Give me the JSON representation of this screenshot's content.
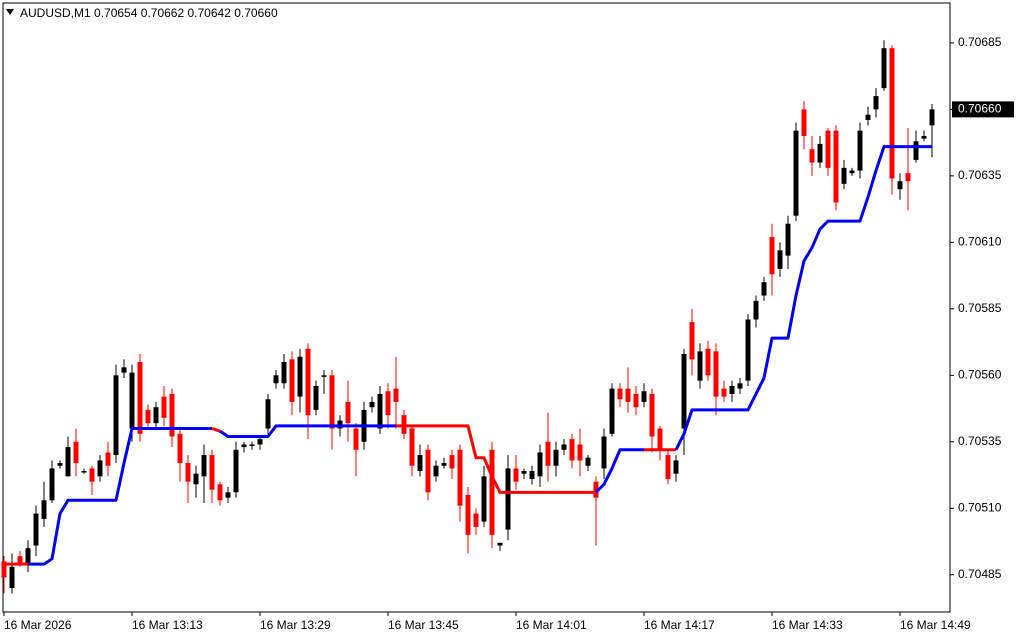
{
  "chart_data": {
    "type": "candlestick",
    "title": "AUDUSD,M1",
    "info_labels": [
      "0.70654",
      "0.70662",
      "0.70642",
      "0.70660"
    ],
    "categories": [
      "16 Mar 2026",
      null,
      null,
      null,
      null,
      null,
      null,
      null,
      null,
      null,
      null,
      null,
      null,
      null,
      null,
      null,
      "16 Mar 13:13",
      null,
      null,
      null,
      null,
      null,
      null,
      null,
      null,
      null,
      null,
      null,
      null,
      null,
      null,
      null,
      "16 Mar 13:29",
      null,
      null,
      null,
      null,
      null,
      null,
      null,
      null,
      null,
      null,
      null,
      null,
      null,
      null,
      null,
      "16 Mar 13:45",
      null,
      null,
      null,
      null,
      null,
      null,
      null,
      null,
      null,
      null,
      null,
      null,
      null,
      null,
      null,
      "16 Mar 14:01",
      null,
      null,
      null,
      null,
      null,
      null,
      null,
      null,
      null,
      null,
      null,
      null,
      null,
      null,
      null,
      "16 Mar 14:17",
      null,
      null,
      null,
      null,
      null,
      null,
      null,
      null,
      null,
      null,
      null,
      null,
      null,
      null,
      null,
      "16 Mar 14:33",
      null,
      null,
      null,
      null,
      null,
      null,
      null,
      null,
      null,
      null,
      null,
      null,
      null,
      null,
      null,
      "16 Mar 14:49",
      null,
      null,
      null,
      null
    ],
    "open": [
      0.7049,
      0.7048,
      0.70492,
      0.70489,
      0.70496,
      0.70506,
      0.70513,
      0.70526,
      0.70522,
      0.70535,
      0.70524,
      0.70525,
      0.70522,
      0.70531,
      0.7053,
      0.70561,
      0.7054,
      0.70565,
      0.70547,
      0.70542,
      0.70552,
      0.70553,
      0.70538,
      0.70527,
      0.70519,
      0.70522,
      0.7053,
      0.70519,
      0.70514,
      0.70516,
      0.70533,
      0.70534,
      0.70534,
      0.7054,
      0.70557,
      0.70557,
      0.70566,
      0.70552,
      0.7057,
      0.70547,
      0.7056,
      0.7056,
      0.7054,
      0.7055,
      0.7054,
      0.70535,
      0.70548,
      0.7054,
      0.70554,
      0.70555,
      0.70545,
      0.7054,
      0.70524,
      0.70532,
      0.70522,
      0.70526,
      0.7053,
      0.70532,
      0.70515,
      0.70508,
      0.70505,
      0.70532,
      0.70496,
      0.70502,
      0.70525,
      0.70523,
      0.70521,
      0.70522,
      0.70535,
      0.70526,
      0.70532,
      0.70536,
      0.70534,
      0.70526,
      0.7052,
      0.70525,
      0.70538,
      0.70555,
      0.70555,
      0.70553,
      0.7055,
      0.70553,
      0.7054,
      0.7053,
      0.70523,
      0.7054,
      0.7058,
      0.70558,
      0.7057,
      0.70569,
      0.70555,
      0.70553,
      0.70555,
      0.70558,
      0.70581,
      0.7059,
      0.70612,
      0.706,
      0.70605,
      0.7062,
      0.7066,
      0.70645,
      0.7064,
      0.70652,
      0.70652,
      0.70632,
      0.70636,
      0.70637,
      0.70656,
      0.7066,
      0.70668,
      0.70683,
      0.7063,
      0.70636,
      0.70641,
      0.70649,
      0.70654
    ],
    "high": [
      0.70492,
      0.70493,
      0.70494,
      0.70498,
      0.70511,
      0.7052,
      0.70528,
      0.70528,
      0.70537,
      0.7054,
      0.70525,
      0.70526,
      0.7053,
      0.70535,
      0.70564,
      0.70566,
      0.70564,
      0.70568,
      0.70549,
      0.7055,
      0.70556,
      0.70555,
      0.7054,
      0.7053,
      0.70526,
      0.70534,
      0.70532,
      0.7052,
      0.70518,
      0.70535,
      0.70535,
      0.70535,
      0.70537,
      0.70553,
      0.70562,
      0.70568,
      0.70569,
      0.7057,
      0.70572,
      0.70558,
      0.70562,
      0.70562,
      0.70545,
      0.70558,
      0.70542,
      0.7055,
      0.70552,
      0.70556,
      0.70557,
      0.70567,
      0.70547,
      0.70541,
      0.70534,
      0.70534,
      0.70528,
      0.70529,
      0.70532,
      0.70534,
      0.70518,
      0.7051,
      0.70526,
      0.70535,
      0.70497,
      0.7053,
      0.7053,
      0.70525,
      0.70526,
      0.70534,
      0.70546,
      0.70535,
      0.70536,
      0.70538,
      0.7054,
      0.7053,
      0.70522,
      0.7054,
      0.70557,
      0.70557,
      0.70563,
      0.70556,
      0.70557,
      0.70555,
      0.70541,
      0.70532,
      0.7053,
      0.7057,
      0.70585,
      0.70572,
      0.70573,
      0.70572,
      0.70558,
      0.70558,
      0.70559,
      0.70583,
      0.7059,
      0.70597,
      0.70617,
      0.7061,
      0.7062,
      0.70655,
      0.70663,
      0.7065,
      0.7065,
      0.70653,
      0.70654,
      0.70641,
      0.70638,
      0.70655,
      0.70661,
      0.70668,
      0.70686,
      0.70684,
      0.70636,
      0.70653,
      0.70652,
      0.70652,
      0.70662
    ],
    "low": [
      0.70478,
      0.70478,
      0.70488,
      0.70486,
      0.70492,
      0.70503,
      0.70512,
      0.70525,
      0.70522,
      0.70522,
      0.70523,
      0.70515,
      0.7052,
      0.70522,
      0.70527,
      0.70559,
      0.70535,
      0.70535,
      0.7054,
      0.7054,
      0.70541,
      0.70533,
      0.7052,
      0.70512,
      0.70514,
      0.70512,
      0.70512,
      0.70511,
      0.70512,
      0.70514,
      0.70531,
      0.70532,
      0.70532,
      0.70538,
      0.70555,
      0.70555,
      0.70545,
      0.70546,
      0.70536,
      0.70545,
      0.70553,
      0.70532,
      0.70537,
      0.70535,
      0.70522,
      0.70532,
      0.70546,
      0.70538,
      0.7054,
      0.7054,
      0.70536,
      0.70522,
      0.70522,
      0.70513,
      0.7052,
      0.70525,
      0.70521,
      0.70505,
      0.70493,
      0.705,
      0.70503,
      0.70495,
      0.70494,
      0.70498,
      0.70517,
      0.70521,
      0.70519,
      0.70518,
      0.7052,
      0.70522,
      0.7053,
      0.70525,
      0.70522,
      0.70524,
      0.70496,
      0.70521,
      0.70537,
      0.70548,
      0.70546,
      0.70545,
      0.70548,
      0.70531,
      0.70528,
      0.70519,
      0.7052,
      0.7053,
      0.7056,
      0.70555,
      0.70558,
      0.70545,
      0.7055,
      0.7055,
      0.70553,
      0.70556,
      0.70578,
      0.70588,
      0.7059,
      0.70597,
      0.706,
      0.70618,
      0.70645,
      0.70635,
      0.70638,
      0.70635,
      0.70622,
      0.7063,
      0.70635,
      0.70634,
      0.70654,
      0.70657,
      0.70667,
      0.70628,
      0.70626,
      0.70622,
      0.7064,
      0.70648,
      0.70642
    ],
    "close": [
      0.70484,
      0.70488,
      0.70489,
      0.70495,
      0.70508,
      0.70513,
      0.70525,
      0.70527,
      0.70533,
      0.70527,
      0.70524,
      0.7052,
      0.70528,
      0.70526,
      0.7056,
      0.70563,
      0.70561,
      0.70538,
      0.70542,
      0.70548,
      0.70544,
      0.70537,
      0.70527,
      0.7052,
      0.70523,
      0.7053,
      0.70517,
      0.70513,
      0.70516,
      0.70532,
      0.70534,
      0.70534,
      0.70536,
      0.70551,
      0.7056,
      0.70565,
      0.7055,
      0.70567,
      0.70545,
      0.70556,
      0.7056,
      0.7054,
      0.70543,
      0.70542,
      0.70532,
      0.70547,
      0.7055,
      0.70553,
      0.70545,
      0.7055,
      0.70538,
      0.70526,
      0.7053,
      0.70516,
      0.70526,
      0.70527,
      0.70525,
      0.70511,
      0.705,
      0.70503,
      0.70522,
      0.705,
      0.70497,
      0.70525,
      0.7052,
      0.70524,
      0.70524,
      0.70531,
      0.70526,
      0.70532,
      0.70534,
      0.70528,
      0.70528,
      0.70529,
      0.70514,
      0.70537,
      0.70555,
      0.70551,
      0.7055,
      0.70548,
      0.70554,
      0.70537,
      0.70532,
      0.70521,
      0.70528,
      0.70568,
      0.70566,
      0.70569,
      0.7056,
      0.70552,
      0.70552,
      0.70556,
      0.70557,
      0.70581,
      0.70588,
      0.70595,
      0.70598,
      0.70607,
      0.70617,
      0.70652,
      0.7065,
      0.7064,
      0.70647,
      0.70638,
      0.70625,
      0.70638,
      0.70637,
      0.70652,
      0.70658,
      0.70665,
      0.70683,
      0.70634,
      0.70633,
      0.70633,
      0.70648,
      0.7065,
      0.7066
    ],
    "up_color": "#000000",
    "down_color": "#ff0000",
    "line": {
      "values": [
        0.70489,
        0.70489,
        0.70489,
        0.70489,
        0.70489,
        0.70489,
        0.70491,
        0.70508,
        0.70513,
        0.70513,
        0.70513,
        0.70513,
        0.70513,
        0.70513,
        0.70513,
        0.70527,
        0.7054,
        0.7054,
        0.7054,
        0.7054,
        0.7054,
        0.7054,
        0.7054,
        0.7054,
        0.7054,
        0.7054,
        0.7054,
        0.70539,
        0.70537,
        0.70537,
        0.70537,
        0.70537,
        0.70537,
        0.70537,
        0.70541,
        0.70541,
        0.70541,
        0.70541,
        0.70541,
        0.70541,
        0.70541,
        0.70541,
        0.70541,
        0.70541,
        0.70541,
        0.70541,
        0.70541,
        0.70541,
        0.70541,
        0.70541,
        0.70541,
        0.70541,
        0.70541,
        0.70541,
        0.70541,
        0.70541,
        0.70541,
        0.70541,
        0.70541,
        0.70529,
        0.70529,
        0.70522,
        0.70516,
        0.70516,
        0.70516,
        0.70516,
        0.70516,
        0.70516,
        0.70516,
        0.70516,
        0.70516,
        0.70516,
        0.70516,
        0.70516,
        0.70516,
        0.70519,
        0.70525,
        0.70532,
        0.70532,
        0.70532,
        0.70532,
        0.70532,
        0.70532,
        0.70532,
        0.70532,
        0.70538,
        0.70547,
        0.70547,
        0.70547,
        0.70547,
        0.70547,
        0.70547,
        0.70547,
        0.70547,
        0.70553,
        0.70559,
        0.70574,
        0.70574,
        0.70574,
        0.7059,
        0.70603,
        0.70608,
        0.70615,
        0.70618,
        0.70618,
        0.70618,
        0.70618,
        0.70618,
        0.70627,
        0.70637,
        0.70646,
        0.70646,
        0.70646,
        0.70646,
        0.70646,
        0.70646,
        0.70646
      ],
      "colors": [
        "#ff0000",
        "#ff0000",
        "#ff0000",
        "#ff0000",
        "#0000ff",
        "#0000ff",
        "#0000ff",
        "#0000ff",
        "#0000ff",
        "#0000ff",
        "#0000ff",
        "#0000ff",
        "#0000ff",
        "#0000ff",
        "#0000ff",
        "#0000ff",
        "#0000ff",
        "#0000ff",
        "#0000ff",
        "#0000ff",
        "#0000ff",
        "#0000ff",
        "#0000ff",
        "#0000ff",
        "#0000ff",
        "#0000ff",
        "#0000ff",
        "#ff0000",
        "#0000ff",
        "#0000ff",
        "#0000ff",
        "#0000ff",
        "#0000ff",
        "#0000ff",
        "#0000ff",
        "#0000ff",
        "#0000ff",
        "#0000ff",
        "#0000ff",
        "#0000ff",
        "#0000ff",
        "#0000ff",
        "#0000ff",
        "#0000ff",
        "#0000ff",
        "#0000ff",
        "#0000ff",
        "#0000ff",
        "#0000ff",
        "#0000ff",
        "#ff0000",
        "#ff0000",
        "#ff0000",
        "#ff0000",
        "#ff0000",
        "#ff0000",
        "#ff0000",
        "#ff0000",
        "#ff0000",
        "#ff0000",
        "#ff0000",
        "#ff0000",
        "#ff0000",
        "#ff0000",
        "#ff0000",
        "#ff0000",
        "#ff0000",
        "#ff0000",
        "#ff0000",
        "#ff0000",
        "#ff0000",
        "#ff0000",
        "#ff0000",
        "#ff0000",
        "#ff0000",
        "#0000ff",
        "#0000ff",
        "#0000ff",
        "#0000ff",
        "#0000ff",
        "#0000ff",
        "#ff0000",
        "#ff0000",
        "#ff0000",
        "#ff0000",
        "#0000ff",
        "#0000ff",
        "#0000ff",
        "#0000ff",
        "#0000ff",
        "#0000ff",
        "#0000ff",
        "#0000ff",
        "#0000ff",
        "#0000ff",
        "#0000ff",
        "#0000ff",
        "#0000ff",
        "#0000ff",
        "#0000ff",
        "#0000ff",
        "#0000ff",
        "#0000ff",
        "#0000ff",
        "#0000ff",
        "#0000ff",
        "#0000ff",
        "#0000ff",
        "#0000ff",
        "#0000ff",
        "#0000ff",
        "#0000ff",
        "#0000ff",
        "#0000ff",
        "#0000ff",
        "#0000ff",
        "#0000ff"
      ]
    },
    "ylim": [
      0.70471,
      0.707
    ],
    "yticks": [
      0.70685,
      {
        "value": 0.7066,
        "label": "0.70660"
      },
      0.70635,
      {
        "value": 0.7061,
        "label": "0.70610"
      },
      0.70585,
      {
        "value": 0.7056,
        "label": "0.70560"
      },
      0.70535,
      {
        "value": 0.7051,
        "label": "0.70510"
      },
      0.70485
    ],
    "bid": {
      "value": 0.7066,
      "label": "0.70660"
    }
  }
}
